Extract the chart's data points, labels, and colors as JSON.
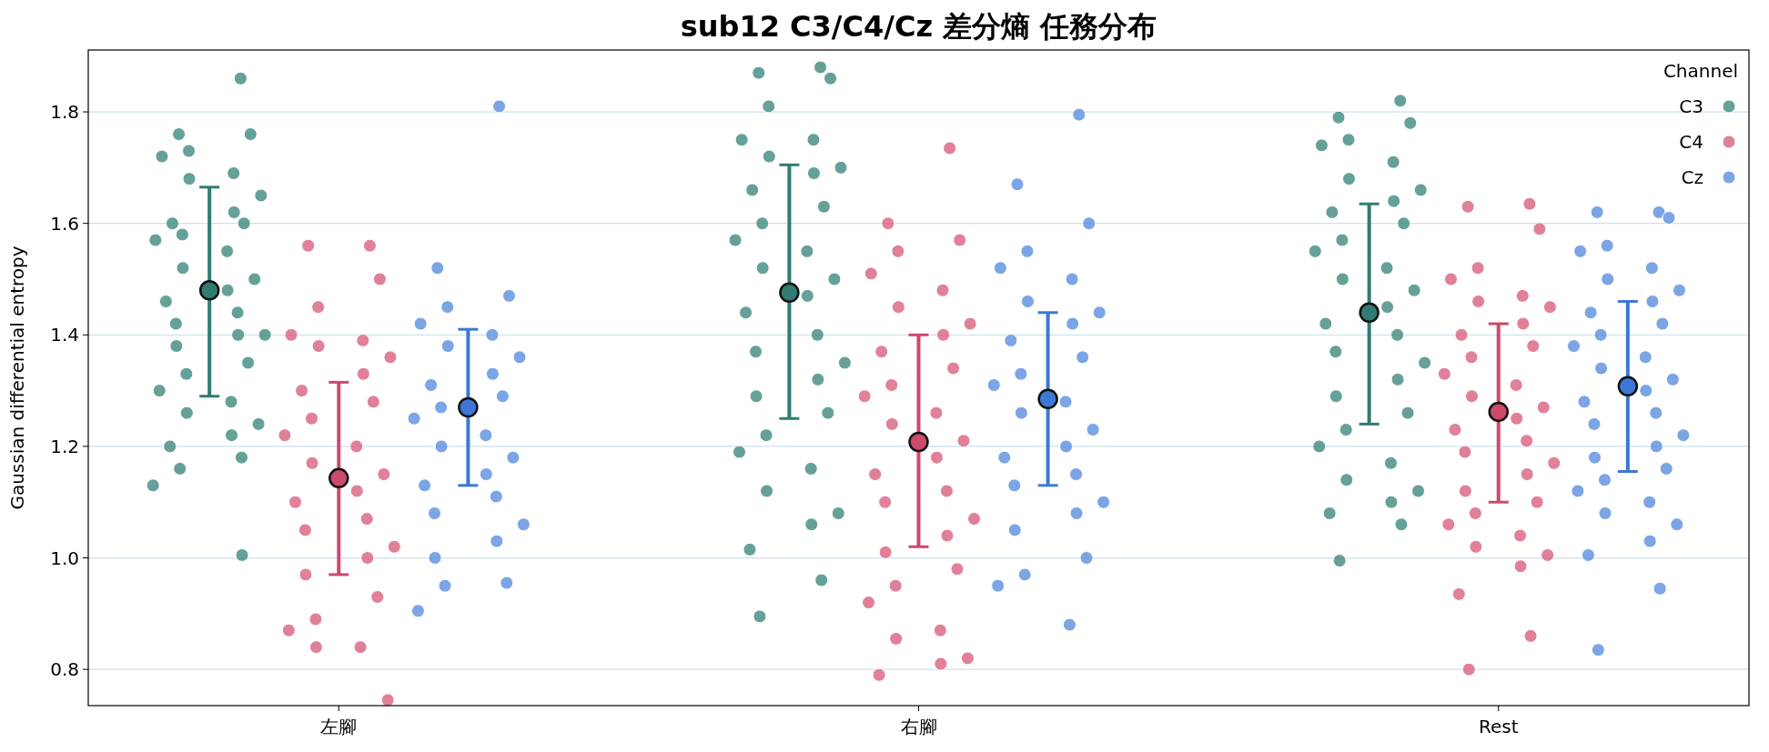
{
  "chart_data": {
    "type": "scatter",
    "title": "sub12 C3/C4/Cz 差分熵 任務分布",
    "ylabel": "Gaussian differential entropy",
    "legend_title": "Channel",
    "categories": [
      "左腳",
      "右腳",
      "Rest"
    ],
    "ylim": [
      0.735,
      1.911
    ],
    "yticks": [
      {
        "value": 0.8,
        "label": "0.8"
      },
      {
        "value": 1,
        "label": "1.0"
      },
      {
        "value": 1.2,
        "label": "1.2"
      },
      {
        "value": 1.4,
        "label": "1.4"
      },
      {
        "value": 1.6,
        "label": "1.6"
      },
      {
        "value": 1.8,
        "label": "1.8"
      }
    ],
    "grid": "y",
    "legend": "top right",
    "marker": "circle",
    "series": [
      {
        "name": "C3",
        "color": "#3f8a80",
        "x": [
          "左腳",
          "左腳",
          "左腳",
          "左腳",
          "左腳",
          "左腳",
          "左腳",
          "左腳",
          "左腳",
          "左腳",
          "左腳",
          "左腳",
          "左腳",
          "左腳",
          "左腳",
          "左腳",
          "左腳",
          "左腳",
          "左腳",
          "左腳",
          "左腳",
          "左腳",
          "左腳",
          "左腳",
          "左腳",
          "左腳",
          "左腳",
          "左腳",
          "左腳",
          "左腳",
          "左腳",
          "左腳",
          "左腳",
          "左腳",
          "左腳",
          "右腳",
          "右腳",
          "右腳",
          "右腳",
          "右腳",
          "右腳",
          "右腳",
          "右腳",
          "右腳",
          "右腳",
          "右腳",
          "右腳",
          "右腳",
          "右腳",
          "右腳",
          "右腳",
          "右腳",
          "右腳",
          "右腳",
          "右腳",
          "右腳",
          "右腳",
          "右腳",
          "右腳",
          "右腳",
          "右腳",
          "右腳",
          "右腳",
          "右腳",
          "右腳",
          "右腳",
          "右腳",
          "右腳",
          "Rest",
          "Rest",
          "Rest",
          "Rest",
          "Rest",
          "Rest",
          "Rest",
          "Rest",
          "Rest",
          "Rest",
          "Rest",
          "Rest",
          "Rest",
          "Rest",
          "Rest",
          "Rest",
          "Rest",
          "Rest",
          "Rest",
          "Rest",
          "Rest",
          "Rest",
          "Rest",
          "Rest",
          "Rest",
          "Rest",
          "Rest",
          "Rest",
          "Rest",
          "Rest",
          "Rest",
          "Rest",
          "Rest"
        ],
        "values": [
          1.86,
          1.76,
          1.76,
          1.73,
          1.72,
          1.69,
          1.68,
          1.65,
          1.62,
          1.6,
          1.6,
          1.58,
          1.57,
          1.55,
          1.52,
          1.5,
          1.48,
          1.46,
          1.44,
          1.42,
          1.4,
          1.4,
          1.38,
          1.35,
          1.33,
          1.3,
          1.28,
          1.26,
          1.24,
          1.22,
          1.2,
          1.18,
          1.16,
          1.13,
          1.005,
          1.88,
          1.87,
          1.86,
          1.81,
          1.75,
          1.75,
          1.72,
          1.7,
          1.69,
          1.66,
          1.63,
          1.6,
          1.57,
          1.55,
          1.52,
          1.5,
          1.47,
          1.44,
          1.4,
          1.37,
          1.35,
          1.32,
          1.29,
          1.26,
          1.22,
          1.19,
          1.16,
          1.12,
          1.08,
          1.06,
          1.015,
          0.96,
          0.895,
          1.82,
          1.79,
          1.78,
          1.75,
          1.74,
          1.71,
          1.68,
          1.66,
          1.64,
          1.62,
          1.6,
          1.57,
          1.55,
          1.52,
          1.5,
          1.48,
          1.45,
          1.42,
          1.4,
          1.37,
          1.35,
          1.32,
          1.29,
          1.26,
          1.23,
          1.2,
          1.17,
          1.14,
          1.12,
          1.1,
          1.08,
          1.06,
          0.995
        ]
      },
      {
        "name": "C4",
        "color": "#d9627f",
        "x": [
          "左腳",
          "左腳",
          "左腳",
          "左腳",
          "左腳",
          "左腳",
          "左腳",
          "左腳",
          "左腳",
          "左腳",
          "左腳",
          "左腳",
          "左腳",
          "左腳",
          "左腳",
          "左腳",
          "左腳",
          "左腳",
          "左腳",
          "左腳",
          "左腳",
          "左腳",
          "左腳",
          "左腳",
          "左腳",
          "左腳",
          "左腳",
          "左腳",
          "左腳",
          "右腳",
          "右腳",
          "右腳",
          "右腳",
          "右腳",
          "右腳",
          "右腳",
          "右腳",
          "右腳",
          "右腳",
          "右腳",
          "右腳",
          "右腳",
          "右腳",
          "右腳",
          "右腳",
          "右腳",
          "右腳",
          "右腳",
          "右腳",
          "右腳",
          "右腳",
          "右腳",
          "右腳",
          "右腳",
          "右腳",
          "右腳",
          "右腳",
          "右腳",
          "右腳",
          "右腳",
          "Rest",
          "Rest",
          "Rest",
          "Rest",
          "Rest",
          "Rest",
          "Rest",
          "Rest",
          "Rest",
          "Rest",
          "Rest",
          "Rest",
          "Rest",
          "Rest",
          "Rest",
          "Rest",
          "Rest",
          "Rest",
          "Rest",
          "Rest",
          "Rest",
          "Rest",
          "Rest",
          "Rest",
          "Rest",
          "Rest",
          "Rest",
          "Rest",
          "Rest",
          "Rest",
          "Rest",
          "Rest",
          "Rest"
        ],
        "values": [
          1.56,
          1.56,
          1.5,
          1.45,
          1.4,
          1.39,
          1.38,
          1.36,
          1.33,
          1.3,
          1.28,
          1.25,
          1.22,
          1.2,
          1.17,
          1.15,
          1.12,
          1.1,
          1.07,
          1.05,
          1.02,
          1.0,
          0.97,
          0.93,
          0.89,
          0.87,
          0.84,
          0.84,
          0.745,
          1.735,
          1.6,
          1.57,
          1.55,
          1.51,
          1.48,
          1.45,
          1.42,
          1.4,
          1.37,
          1.34,
          1.31,
          1.29,
          1.26,
          1.24,
          1.21,
          1.18,
          1.15,
          1.12,
          1.1,
          1.07,
          1.04,
          1.01,
          0.98,
          0.95,
          0.92,
          0.87,
          0.855,
          0.82,
          0.81,
          0.79,
          1.635,
          1.63,
          1.59,
          1.52,
          1.5,
          1.47,
          1.46,
          1.45,
          1.42,
          1.4,
          1.38,
          1.36,
          1.33,
          1.31,
          1.29,
          1.27,
          1.25,
          1.23,
          1.21,
          1.19,
          1.17,
          1.15,
          1.12,
          1.1,
          1.08,
          1.06,
          1.04,
          1.02,
          1.005,
          0.985,
          0.935,
          0.86,
          0.8
        ]
      },
      {
        "name": "Cz",
        "color": "#5b8fe0",
        "x": [
          "左腳",
          "左腳",
          "左腳",
          "左腳",
          "左腳",
          "左腳",
          "左腳",
          "左腳",
          "左腳",
          "左腳",
          "左腳",
          "左腳",
          "左腳",
          "左腳",
          "左腳",
          "左腳",
          "左腳",
          "左腳",
          "左腳",
          "左腳",
          "左腳",
          "左腳",
          "左腳",
          "左腳",
          "左腳",
          "左腳",
          "右腳",
          "右腳",
          "右腳",
          "右腳",
          "右腳",
          "右腳",
          "右腳",
          "右腳",
          "右腳",
          "右腳",
          "右腳",
          "右腳",
          "右腳",
          "右腳",
          "右腳",
          "右腳",
          "右腳",
          "右腳",
          "右腳",
          "右腳",
          "右腳",
          "右腳",
          "右腳",
          "右腳",
          "右腳",
          "右腳",
          "右腳",
          "Rest",
          "Rest",
          "Rest",
          "Rest",
          "Rest",
          "Rest",
          "Rest",
          "Rest",
          "Rest",
          "Rest",
          "Rest",
          "Rest",
          "Rest",
          "Rest",
          "Rest",
          "Rest",
          "Rest",
          "Rest",
          "Rest",
          "Rest",
          "Rest",
          "Rest",
          "Rest",
          "Rest",
          "Rest",
          "Rest",
          "Rest",
          "Rest",
          "Rest",
          "Rest",
          "Rest",
          "Rest",
          "Rest"
        ],
        "values": [
          1.81,
          1.52,
          1.47,
          1.45,
          1.42,
          1.4,
          1.38,
          1.36,
          1.33,
          1.31,
          1.29,
          1.27,
          1.25,
          1.22,
          1.2,
          1.18,
          1.15,
          1.13,
          1.11,
          1.08,
          1.06,
          1.03,
          1.0,
          0.955,
          0.95,
          0.905,
          1.795,
          1.67,
          1.6,
          1.55,
          1.52,
          1.5,
          1.46,
          1.44,
          1.42,
          1.39,
          1.36,
          1.33,
          1.31,
          1.28,
          1.26,
          1.23,
          1.2,
          1.18,
          1.15,
          1.13,
          1.1,
          1.08,
          1.05,
          1.0,
          0.97,
          0.95,
          0.88,
          1.62,
          1.62,
          1.61,
          1.56,
          1.55,
          1.52,
          1.5,
          1.48,
          1.46,
          1.44,
          1.42,
          1.4,
          1.38,
          1.36,
          1.34,
          1.32,
          1.3,
          1.28,
          1.26,
          1.24,
          1.22,
          1.2,
          1.18,
          1.16,
          1.14,
          1.12,
          1.1,
          1.08,
          1.06,
          1.03,
          1.005,
          0.945,
          0.835
        ]
      },
      {
        "color": "#2f7c72",
        "x": [
          "左腳",
          "右腳",
          "Rest"
        ],
        "values": [
          1.48,
          1.476,
          1.44
        ],
        "sizes": [
          1,
          1,
          1
        ],
        "errors": [
          [
            1.29,
            1.665
          ],
          [
            1.25,
            1.705
          ],
          [
            1.24,
            1.635
          ]
        ]
      },
      {
        "color": "#cc4a6c",
        "x": [
          "左腳",
          "右腳",
          "Rest"
        ],
        "values": [
          1.143,
          1.208,
          1.262
        ],
        "sizes": [
          1,
          1,
          1
        ],
        "errors": [
          [
            0.97,
            1.315
          ],
          [
            1.02,
            1.4
          ],
          [
            1.1,
            1.42
          ]
        ]
      },
      {
        "color": "#3d78d6",
        "x": [
          "左腳",
          "右腳",
          "Rest"
        ],
        "values": [
          1.27,
          1.285,
          1.308
        ],
        "sizes": [
          1,
          1,
          1
        ],
        "errors": [
          [
            1.13,
            1.41
          ],
          [
            1.13,
            1.44
          ],
          [
            1.155,
            1.46
          ]
        ]
      }
    ]
  }
}
